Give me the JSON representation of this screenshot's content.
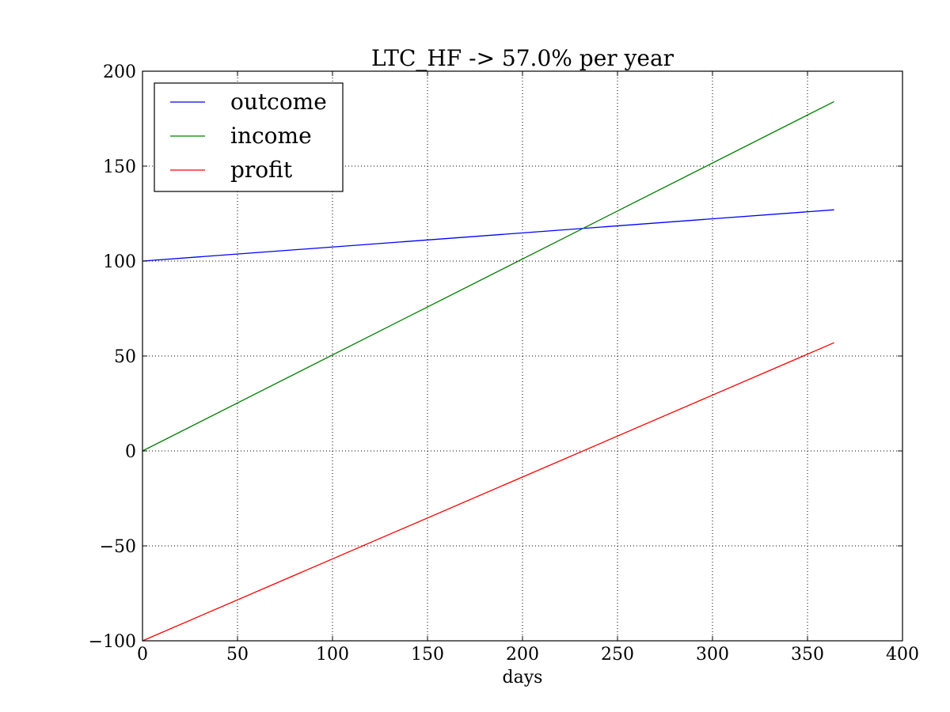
{
  "chart_data": {
    "type": "line",
    "title": "LTC_HF -> 57.0% per year",
    "xlabel": "days",
    "ylabel": "",
    "xlim": [
      0,
      400
    ],
    "ylim": [
      -100,
      200
    ],
    "xticks": [
      0,
      50,
      100,
      150,
      200,
      250,
      300,
      350,
      400
    ],
    "yticks": [
      -100,
      -50,
      0,
      50,
      100,
      150,
      200
    ],
    "xtick_labels": [
      "0",
      "50",
      "100",
      "150",
      "200",
      "250",
      "300",
      "350",
      "400"
    ],
    "ytick_labels": [
      "−100",
      "−50",
      "0",
      "50",
      "100",
      "150",
      "200"
    ],
    "grid": true,
    "legend": "top-left",
    "series": [
      {
        "name": "outcome",
        "color": "#0000ff",
        "x": [
          0,
          364
        ],
        "y": [
          100,
          127
        ]
      },
      {
        "name": "income",
        "color": "#008000",
        "x": [
          0,
          364
        ],
        "y": [
          0,
          184
        ]
      },
      {
        "name": "profit",
        "color": "#ff0000",
        "x": [
          0,
          364
        ],
        "y": [
          -100,
          57
        ]
      }
    ]
  }
}
